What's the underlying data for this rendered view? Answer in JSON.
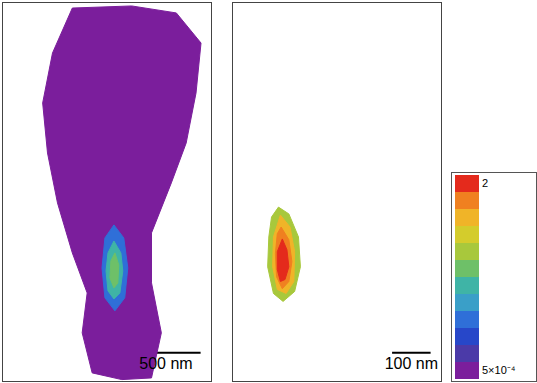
{
  "chart_data": [
    {
      "type": "contour",
      "xlim": [
        0,
        1500
      ],
      "ylim": [
        0,
        2700
      ],
      "tick_labels": false,
      "scale_bar": {
        "length": 500,
        "label": "500 nm"
      },
      "contours": [
        {
          "level": 0.0005,
          "points": [
            [
              500,
              36
            ],
            [
              928,
              21
            ],
            [
              1250,
              71
            ],
            [
              1428,
              286
            ],
            [
              1392,
              643
            ],
            [
              1321,
              1000
            ],
            [
              1214,
              1285
            ],
            [
              1071,
              1642
            ],
            [
              1071,
              1999
            ],
            [
              1142,
              2356
            ],
            [
              1071,
              2678
            ],
            [
              857,
              2690
            ],
            [
              643,
              2642
            ],
            [
              571,
              2356
            ],
            [
              607,
              2071
            ],
            [
              500,
              1785
            ],
            [
              393,
              1428
            ],
            [
              321,
              1071
            ],
            [
              286,
              714
            ],
            [
              357,
              357
            ]
          ]
        },
        {
          "level": 0.005,
          "points": [
            [
              800,
              1585
            ],
            [
              871,
              1678
            ],
            [
              900,
              1892
            ],
            [
              878,
              2106
            ],
            [
              807,
              2199
            ],
            [
              735,
              2106
            ],
            [
              714,
              1892
            ],
            [
              735,
              1678
            ]
          ]
        },
        {
          "level": 0.02,
          "points": [
            [
              800,
              1700
            ],
            [
              850,
              1785
            ],
            [
              864,
              1914
            ],
            [
              843,
              2071
            ],
            [
              800,
              2114
            ],
            [
              757,
              2056
            ],
            [
              743,
              1914
            ],
            [
              757,
              1785
            ]
          ]
        },
        {
          "level": 0.05,
          "points": [
            [
              807,
              1785
            ],
            [
              835,
              1871
            ],
            [
              828,
              2000
            ],
            [
              800,
              2035
            ],
            [
              771,
              1964
            ],
            [
              778,
              1842
            ]
          ]
        }
      ]
    },
    {
      "type": "contour",
      "xlim": [
        0,
        540
      ],
      "ylim": [
        0,
        950
      ],
      "tick_labels": false,
      "scale_bar": {
        "length": 100,
        "label": "100 nm"
      },
      "contours": [
        {
          "level": 0.1,
          "points": [
            [
              118,
              513
            ],
            [
              145,
              530
            ],
            [
              170,
              588
            ],
            [
              175,
              663
            ],
            [
              160,
              725
            ],
            [
              130,
              750
            ],
            [
              105,
              730
            ],
            [
              90,
              663
            ],
            [
              93,
              588
            ],
            [
              100,
              538
            ]
          ]
        },
        {
          "level": 0.3,
          "points": [
            [
              123,
              533
            ],
            [
              148,
              563
            ],
            [
              160,
              625
            ],
            [
              158,
              700
            ],
            [
              138,
              730
            ],
            [
              115,
              720
            ],
            [
              103,
              663
            ],
            [
              105,
              588
            ]
          ]
        },
        {
          "level": 0.8,
          "points": [
            [
              125,
              563
            ],
            [
              145,
              595
            ],
            [
              153,
              650
            ],
            [
              145,
              700
            ],
            [
              128,
              718
            ],
            [
              113,
              688
            ],
            [
              110,
              630
            ],
            [
              115,
              580
            ]
          ]
        },
        {
          "level": 1.5,
          "points": [
            [
              128,
              593
            ],
            [
              140,
              620
            ],
            [
              145,
              663
            ],
            [
              135,
              695
            ],
            [
              123,
              700
            ],
            [
              115,
              670
            ],
            [
              115,
              625
            ]
          ]
        }
      ]
    }
  ],
  "colorbar": {
    "range": [
      0.0005,
      2
    ],
    "log": true,
    "ticks": [
      2,
      {
        "value": 0.0005,
        "label": "5×10⁻⁴"
      }
    ],
    "colors": [
      "#7b1e9c",
      "#4b3aa8",
      "#2747c9",
      "#2f6fd8",
      "#3a9fc8",
      "#3fb4a6",
      "#6ec068",
      "#a8c83c",
      "#d4cc2c",
      "#f0b428",
      "#f08020",
      "#e42a1c"
    ]
  }
}
